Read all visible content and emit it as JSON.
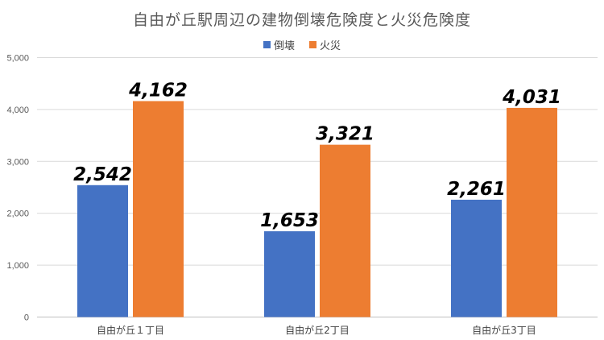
{
  "chart_data": {
    "type": "bar",
    "title": "自由が丘駅周辺の建物倒壊危険度と火災危険度",
    "categories": [
      "自由が丘１丁目",
      "自由が丘2丁目",
      "自由が丘3丁目"
    ],
    "series": [
      {
        "name": "倒壊",
        "color": "#4472c4",
        "values": [
          2542,
          1653,
          2261
        ],
        "labels": [
          "2,542",
          "1,653",
          "2,261"
        ]
      },
      {
        "name": "火災",
        "color": "#ed7d31",
        "values": [
          4162,
          3321,
          4031
        ],
        "labels": [
          "4,162",
          "3,321",
          "4,031"
        ]
      }
    ],
    "ylim": [
      0,
      5000
    ],
    "yticks": [
      0,
      1000,
      2000,
      3000,
      4000,
      5000
    ],
    "ytick_labels": [
      "0",
      "1,000",
      "2,000",
      "3,000",
      "4,000",
      "5,000"
    ],
    "legend_position": "top",
    "grid": true
  }
}
